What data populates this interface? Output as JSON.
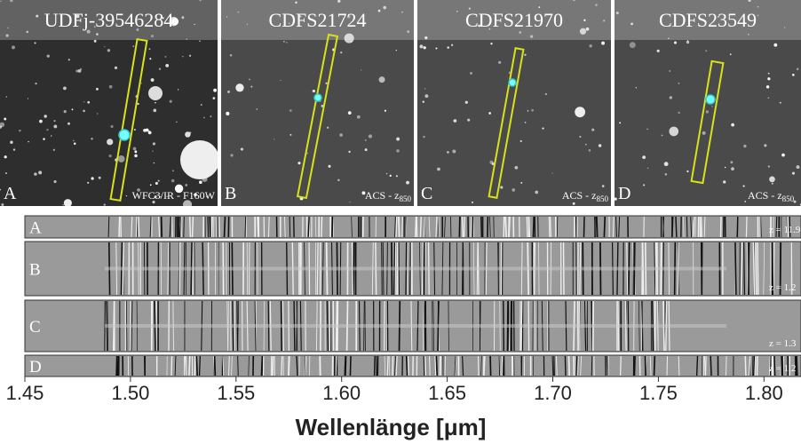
{
  "panels": [
    {
      "title": "UDFj-39546284",
      "letter": "A",
      "filter": {
        "text": "WFC3/IR - F160W"
      }
    },
    {
      "title": "CDFS21724",
      "letter": "B",
      "filter": {
        "text": "ACS - z",
        "sub": "850"
      }
    },
    {
      "title": "CDFS21970",
      "letter": "C",
      "filter": {
        "text": "ACS - z",
        "sub": "850"
      }
    },
    {
      "title": "CDFS23549",
      "letter": "D",
      "filter": {
        "text": "ACS - z",
        "sub": "850"
      }
    }
  ],
  "spectra": [
    {
      "letter": "A",
      "redshift": "z = 11.9"
    },
    {
      "letter": "B",
      "redshift": "z = 1.2"
    },
    {
      "letter": "C",
      "redshift": "z = 1.3"
    },
    {
      "letter": "D",
      "redshift": "z = 1.2"
    }
  ],
  "axis": {
    "label": "Wellenlänge [μm]",
    "xticks": [
      {
        "value": 1.45,
        "label": "1.45"
      },
      {
        "value": 1.5,
        "label": "1.50"
      },
      {
        "value": 1.55,
        "label": "1.55"
      },
      {
        "value": 1.6,
        "label": "1.60"
      },
      {
        "value": 1.65,
        "label": "1.65"
      },
      {
        "value": 1.7,
        "label": "1.70"
      },
      {
        "value": 1.75,
        "label": "1.75"
      },
      {
        "value": 1.8,
        "label": "1.80"
      }
    ]
  }
}
